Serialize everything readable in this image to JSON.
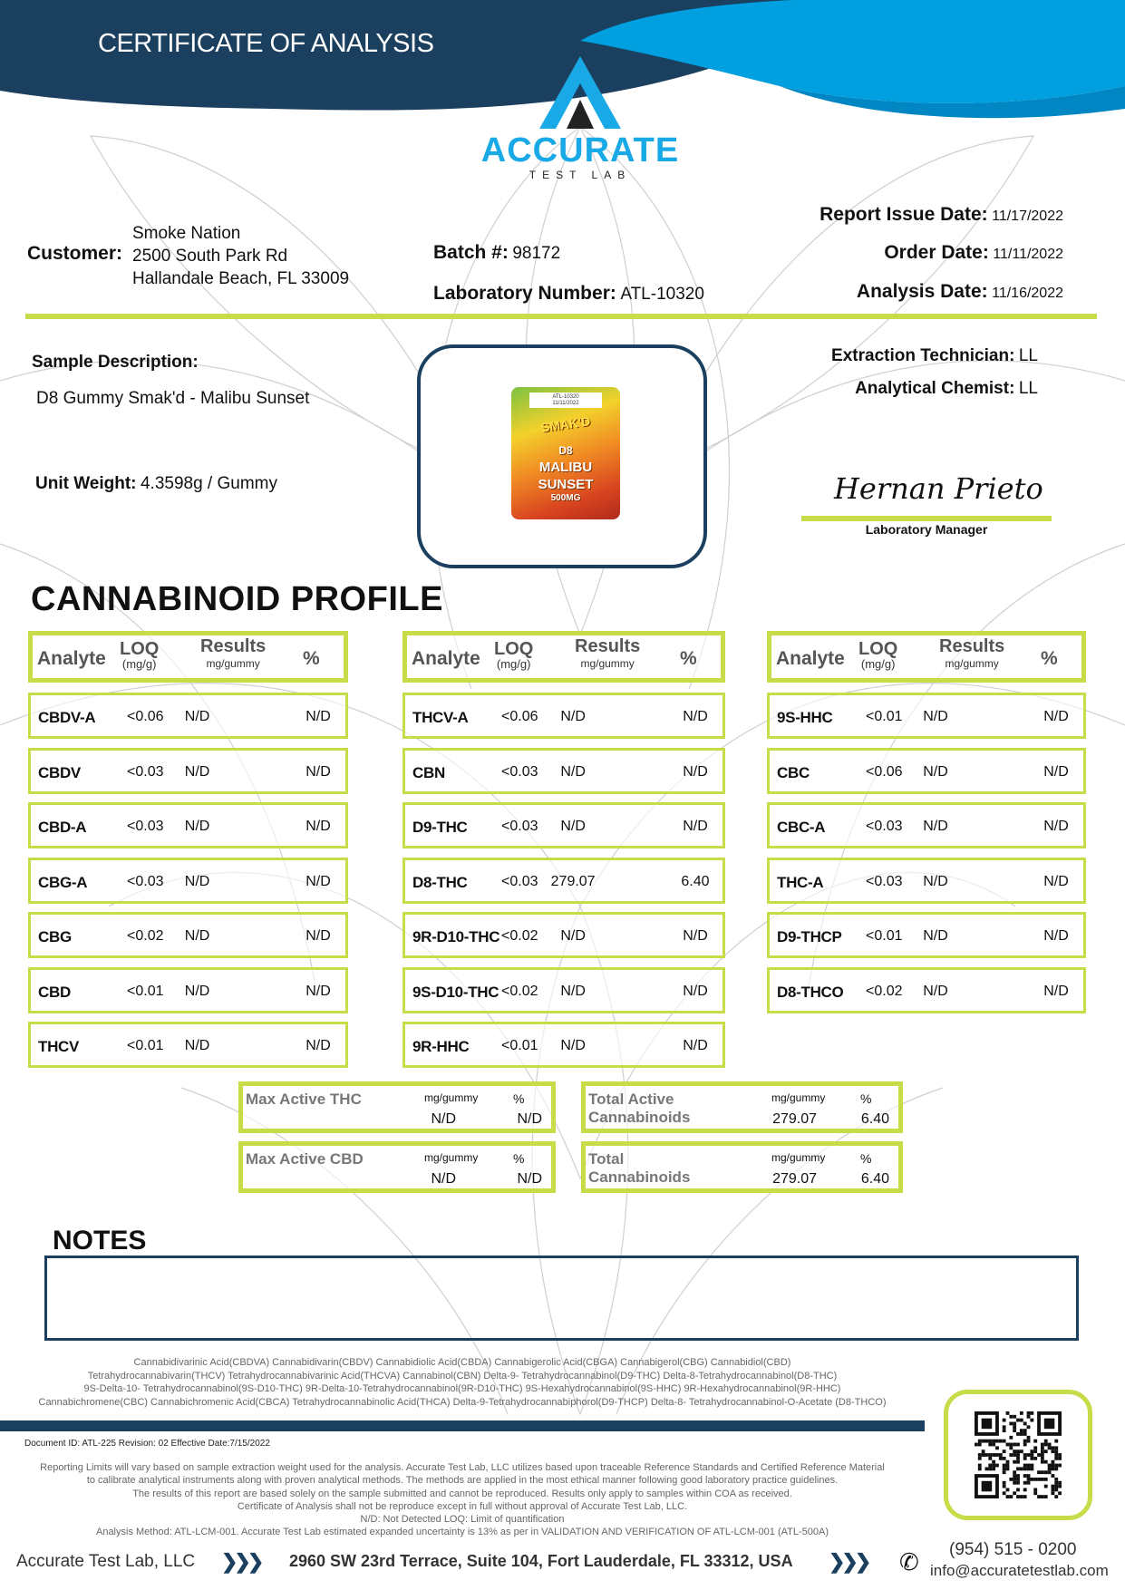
{
  "header": {
    "title": "CERTIFICATE OF ANALYSIS",
    "brand_name": "ACCURATE",
    "brand_sub": "TEST LAB",
    "colors": {
      "navy": "#1b3f5e",
      "blue": "#009fdf",
      "accent_green": "#c8dc4a"
    }
  },
  "customer": {
    "label": "Customer:",
    "name": "Smoke Nation",
    "address1": "2500 South Park Rd",
    "address2": "Hallandale Beach, FL 33009"
  },
  "batch": {
    "label": "Batch #:",
    "value": "98172"
  },
  "lab_number": {
    "label": "Laboratory Number:",
    "value": "ATL-10320"
  },
  "dates": {
    "issue_label": "Report Issue Date:",
    "issue": "11/17/2022",
    "order_label": "Order Date:",
    "order": "11/11/2022",
    "analysis_label": "Analysis Date:",
    "analysis": "11/16/2022"
  },
  "sample": {
    "desc_label": "Sample Description:",
    "desc": "D8 Gummy Smak'd - Malibu Sunset",
    "weight_label": "Unit Weight:",
    "weight": "4.3598g / Gummy"
  },
  "product_image": {
    "tag1": "ATL-10320",
    "tag2": "11/11/2022",
    "brand": "SMAK'D",
    "line1": "D8",
    "line2": "MALIBU",
    "line3": "SUNSET",
    "line4": "500MG"
  },
  "staff": {
    "extraction_label": "Extraction Technician:",
    "extraction": "LL",
    "chemist_label": "Analytical Chemist:",
    "chemist": "LL",
    "signature": "Hernan Prieto",
    "manager_title": "Laboratory Manager"
  },
  "profile": {
    "title": "CANNABINOID PROFILE",
    "headers": {
      "analyte": "Analyte",
      "loq": "LOQ",
      "loq_unit": "(mg/g)",
      "results": "Results",
      "results_unit": "mg/gummy",
      "pct": "%"
    },
    "columns": [
      [
        [
          "CBDV-A",
          "<0.06",
          "N/D",
          "N/D"
        ],
        [
          "CBDV",
          "<0.03",
          "N/D",
          "N/D"
        ],
        [
          "CBD-A",
          "<0.03",
          "N/D",
          "N/D"
        ],
        [
          "CBG-A",
          "<0.03",
          "N/D",
          "N/D"
        ],
        [
          "CBG",
          "<0.02",
          "N/D",
          "N/D"
        ],
        [
          "CBD",
          "<0.01",
          "N/D",
          "N/D"
        ],
        [
          "THCV",
          "<0.01",
          "N/D",
          "N/D"
        ]
      ],
      [
        [
          "THCV-A",
          "<0.06",
          "N/D",
          "N/D"
        ],
        [
          "CBN",
          "<0.03",
          "N/D",
          "N/D"
        ],
        [
          "D9-THC",
          "<0.03",
          "N/D",
          "N/D"
        ],
        [
          "D8-THC",
          "<0.03",
          "279.07",
          "6.40"
        ],
        [
          "9R-D10-THC",
          "<0.02",
          "N/D",
          "N/D"
        ],
        [
          "9S-D10-THC",
          "<0.02",
          "N/D",
          "N/D"
        ],
        [
          "9R-HHC",
          "<0.01",
          "N/D",
          "N/D"
        ]
      ],
      [
        [
          "9S-HHC",
          "<0.01",
          "N/D",
          "N/D"
        ],
        [
          "CBC",
          "<0.06",
          "N/D",
          "N/D"
        ],
        [
          "CBC-A",
          "<0.03",
          "N/D",
          "N/D"
        ],
        [
          "THC-A",
          "<0.03",
          "N/D",
          "N/D"
        ],
        [
          "D9-THCP",
          "<0.01",
          "N/D",
          "N/D"
        ],
        [
          "D8-THCO",
          "<0.02",
          "N/D",
          "N/D"
        ]
      ]
    ]
  },
  "summary": [
    {
      "name": "Max Active THC",
      "unit": "mg/gummy",
      "pct_label": "%",
      "mg": "N/D",
      "pct": "N/D"
    },
    {
      "name": "Max Active CBD",
      "unit": "mg/gummy",
      "pct_label": "%",
      "mg": "N/D",
      "pct": "N/D"
    },
    {
      "name": "Total Active Cannabinoids",
      "unit": "mg/gummy",
      "pct_label": "%",
      "mg": "279.07",
      "pct": "6.40"
    },
    {
      "name": "Total Cannabinoids",
      "unit": "mg/gummy",
      "pct_label": "%",
      "mg": "279.07",
      "pct": "6.40"
    }
  ],
  "notes": {
    "title": "NOTES",
    "content": ""
  },
  "abbreviations": [
    "Cannabidivarinic Acid(CBDVA)  Cannabidivarin(CBDV)  Cannabidiolic Acid(CBDA)  Cannabigerolic Acid(CBGA)  Cannabigerol(CBG)  Cannabidiol(CBD)",
    "Tetrahydrocannabivarin(THCV)  Tetrahydrocannabivarinic Acid(THCVA)  Cannabinol(CBN)  Delta-9- Tetrahydrocannabinol(D9-THC)  Delta-8-Tetrahydrocannabinol(D8-THC)",
    "9S-Delta-10- Tetrahydrocannabinol(9S-D10-THC)  9R-Delta-10-Tetrahydrocannabinol(9R-D10-THC)  9S-Hexahydrocannabinol(9S-HHC)  9R-Hexahydrocannabinol(9R-HHC)",
    "Cannabichromene(CBC)  Cannabichromenic Acid(CBCA)  Tetrahydrocannabinolic Acid(THCA)  Delta-9-Tetrahydrocannabiphorol(D9-THCP)  Delta-8- Tetrahydrocannabinol-O-Acetate (D8-THCO)"
  ],
  "document": {
    "id": "Document ID: ATL-225   Revision: 02    Effective Date:7/15/2022"
  },
  "disclaimer": [
    "Reporting Limits will vary based on sample extraction weight used for the analysis. Accurate Test Lab, LLC utilizes based upon traceable Reference Standards and Certified Reference Material",
    "to calibrate analytical instruments along with proven analytical methods. The methods are applied in the most ethical manner following good laboratory practice guidelines.",
    "The results of this report are based solely on the sample submitted and cannot be reproduced. Results only apply to samples within COA as received.",
    "Certificate of Analysis shall not be reproduce except in full without approval of Accurate Test Lab, LLC.",
    "N/D: Not Detected   LOQ: Limit of quantification",
    "Analysis Method: ATL-LCM-001.    Accurate Test Lab estimated expanded uncertainty is 13% as per in VALIDATION AND VERIFICATION OF ATL-LCM-001 (ATL-500A)"
  ],
  "footer": {
    "company": "Accurate Test Lab, LLC",
    "chevrons": "❯❯❯",
    "address": "2960 SW 23rd Terrace, Suite 104, Fort Lauderdale, FL 33312, USA",
    "phone": "(954) 515 - 0200",
    "email": "info@accuratetestlab.com",
    "icons": [
      "chevrons-right-icon",
      "phone-icon",
      "qr-code-icon"
    ]
  }
}
